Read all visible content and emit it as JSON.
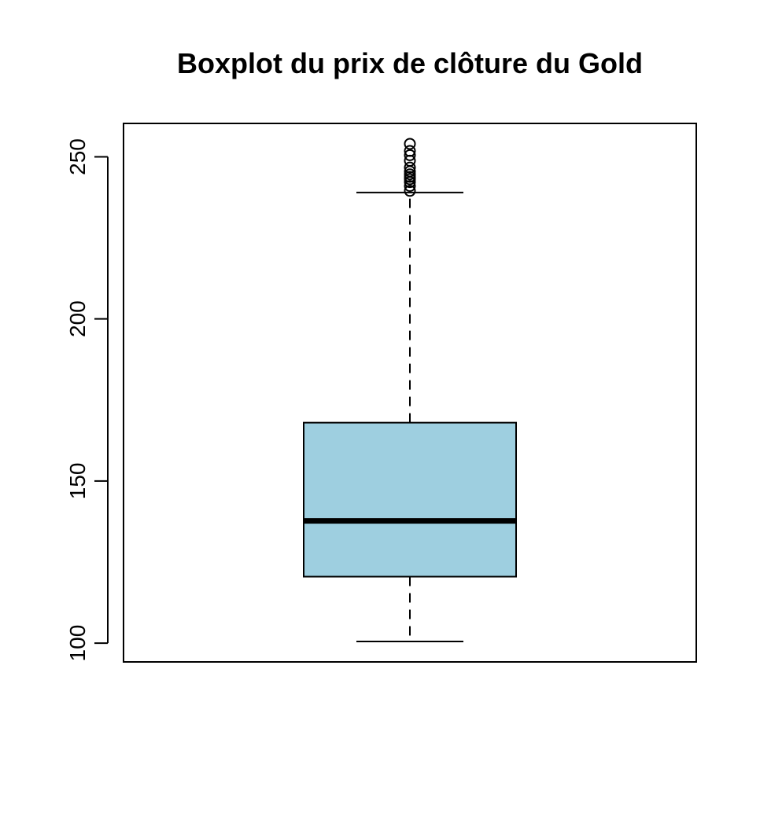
{
  "chart_data": {
    "type": "boxplot",
    "title": "Boxplot du prix de clôture du Gold",
    "xlabel": "",
    "ylabel": "",
    "ylim": [
      94.2,
      260.3
    ],
    "y_ticks": [
      100,
      150,
      200,
      250
    ],
    "y_tick_labels": [
      "100",
      "150",
      "200",
      "250"
    ],
    "box_color": "#9ecfe0",
    "grid": false,
    "box": {
      "min": 100.5,
      "q1": 120.5,
      "median": 137.7,
      "q3": 168.0,
      "max": 239.0
    },
    "outliers": [
      239.5,
      241.0,
      242.2,
      243.1,
      243.8,
      244.6,
      245.5,
      246.7,
      248.8,
      250.5,
      251.8,
      254.0
    ]
  }
}
